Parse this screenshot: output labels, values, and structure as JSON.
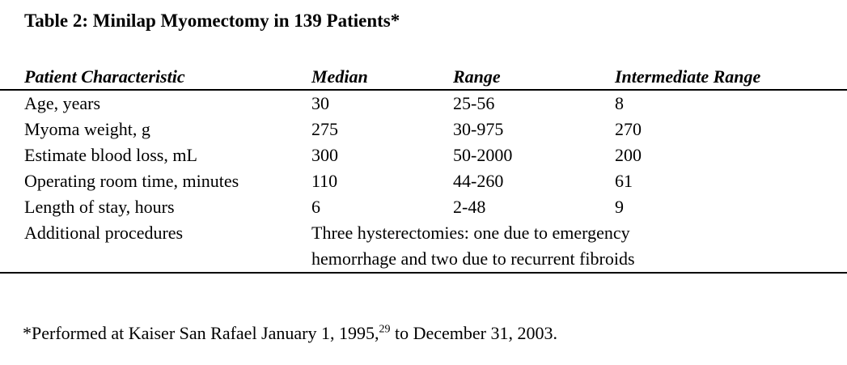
{
  "title": "Table 2: Minilap Myomectomy in 139 Patients*",
  "table": {
    "columns": [
      "Patient Characteristic",
      "Median",
      "Range",
      "Intermediate Range"
    ],
    "rows": [
      {
        "characteristic": "Age, years",
        "median": "30",
        "range": "25-56",
        "intermediate_range": "8"
      },
      {
        "characteristic": "Myoma weight, g",
        "median": "275",
        "range": "30-975",
        "intermediate_range": "270"
      },
      {
        "characteristic": "Estimate blood loss, mL",
        "median": "300",
        "range": "50-2000",
        "intermediate_range": "200"
      },
      {
        "characteristic": "Operating room time, minutes",
        "median": "110",
        "range": "44-260",
        "intermediate_range": "61"
      },
      {
        "characteristic": "Length of stay, hours",
        "median": "6",
        "range": "2-48",
        "intermediate_range": "9"
      },
      {
        "characteristic": "Additional procedures",
        "note_line1": "Three hysterectomies: one due to emergency",
        "note_line2": "hemorrhage and two due to recurrent fibroids"
      }
    ]
  },
  "footnote": {
    "before_sup": "*Performed at Kaiser San Rafael January 1, 1995,",
    "superscript": "29",
    "after_sup": " to December 31, 2003."
  },
  "colors": {
    "text": "#000000",
    "background": "#ffffff",
    "rule": "#000000"
  }
}
